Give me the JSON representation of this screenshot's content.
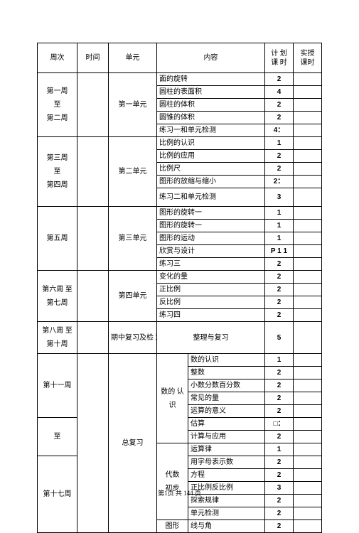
{
  "headers": {
    "week": "周次",
    "time": "时间",
    "unit": "单元",
    "content": "内容",
    "plan1": "计 划",
    "plan2": "课 时",
    "actual1": "实授",
    "actual2": "课时"
  },
  "blocks": [
    {
      "week_lines": [
        "第一周",
        "至",
        "第二周"
      ],
      "unit": "第一单元",
      "rows": [
        {
          "content": "面的旋转",
          "plan": "2"
        },
        {
          "content": "圆柱的表面积",
          "plan": "4"
        },
        {
          "content": "圆柱的体积",
          "plan": "2"
        },
        {
          "content": "圆锥的体积",
          "plan": "2"
        },
        {
          "content": "练习一和单元检测",
          "plan": "4："
        }
      ]
    },
    {
      "week_lines": [
        "第三周",
        "至",
        "第四周"
      ],
      "unit": "第二单元",
      "rows": [
        {
          "content": "比例的认识",
          "plan": "1"
        },
        {
          "content": "比例的应用",
          "plan": "2"
        },
        {
          "content": "比例尺",
          "plan": "2"
        },
        {
          "content": "图形的放缩与缩小",
          "plan": "2："
        },
        {
          "content": "练习二和单元检测",
          "plan": "3",
          "tall": true
        }
      ]
    },
    {
      "week_lines": [
        "第五周"
      ],
      "unit": "第三单元",
      "rows": [
        {
          "content": "图形的旋转一",
          "plan": "1"
        },
        {
          "content": "图形的旋转一",
          "plan": "1"
        },
        {
          "content": "图形的运动",
          "plan": "1"
        },
        {
          "content": "欣赏与设计",
          "plan": "P 1 1"
        },
        {
          "content": "练习三",
          "plan": "2"
        }
      ]
    },
    {
      "week_lines": [
        "第六周 至",
        "第七周"
      ],
      "unit": "第四单元",
      "rows": [
        {
          "content": "变化的量",
          "plan": "2"
        },
        {
          "content": "正比例",
          "plan": "2"
        },
        {
          "content": "反比例",
          "plan": "2"
        },
        {
          "content": "练习四",
          "plan": "2"
        }
      ]
    }
  ],
  "mid": {
    "week_lines": [
      "第八周 至",
      "第十周"
    ],
    "unit": "期中复习及检 测",
    "content": "整理与复习",
    "plan": "5"
  },
  "review": {
    "week_lines_top": [
      "第十一周"
    ],
    "week_mid": "至",
    "week_lines_bot": [
      "第十七周"
    ],
    "unit": "总复习",
    "groups": [
      {
        "label_lines": [
          "数的 认",
          "识"
        ],
        "rows": [
          {
            "content": "数的认识",
            "plan": "1"
          },
          {
            "content": "整数",
            "plan": "2"
          },
          {
            "content": "小数分数百分数",
            "plan": "2"
          },
          {
            "content": "常见的量",
            "plan": "2"
          },
          {
            "content": "运算的意义",
            "plan": "2"
          },
          {
            "content": "估算",
            "plan": "□："
          },
          {
            "content": "计算与应用",
            "plan": "2"
          }
        ]
      },
      {
        "label_lines": [
          "代数",
          "初步"
        ],
        "rows": [
          {
            "content": "运算律",
            "plan": "1"
          },
          {
            "content": "用字母表示数",
            "plan": "2"
          },
          {
            "content": "方程",
            "plan": "2"
          },
          {
            "content": "正比例反比例",
            "plan": "3"
          },
          {
            "content": "探索规律",
            "plan": "2"
          },
          {
            "content": "单元检测",
            "plan": "2"
          }
        ]
      },
      {
        "label_lines": [
          "图形"
        ],
        "rows": [
          {
            "content": "线与角",
            "plan": "2"
          }
        ]
      }
    ]
  },
  "footer": {
    "prefix": "第1页 共 ",
    "num": "144",
    "suffix": " 页"
  }
}
